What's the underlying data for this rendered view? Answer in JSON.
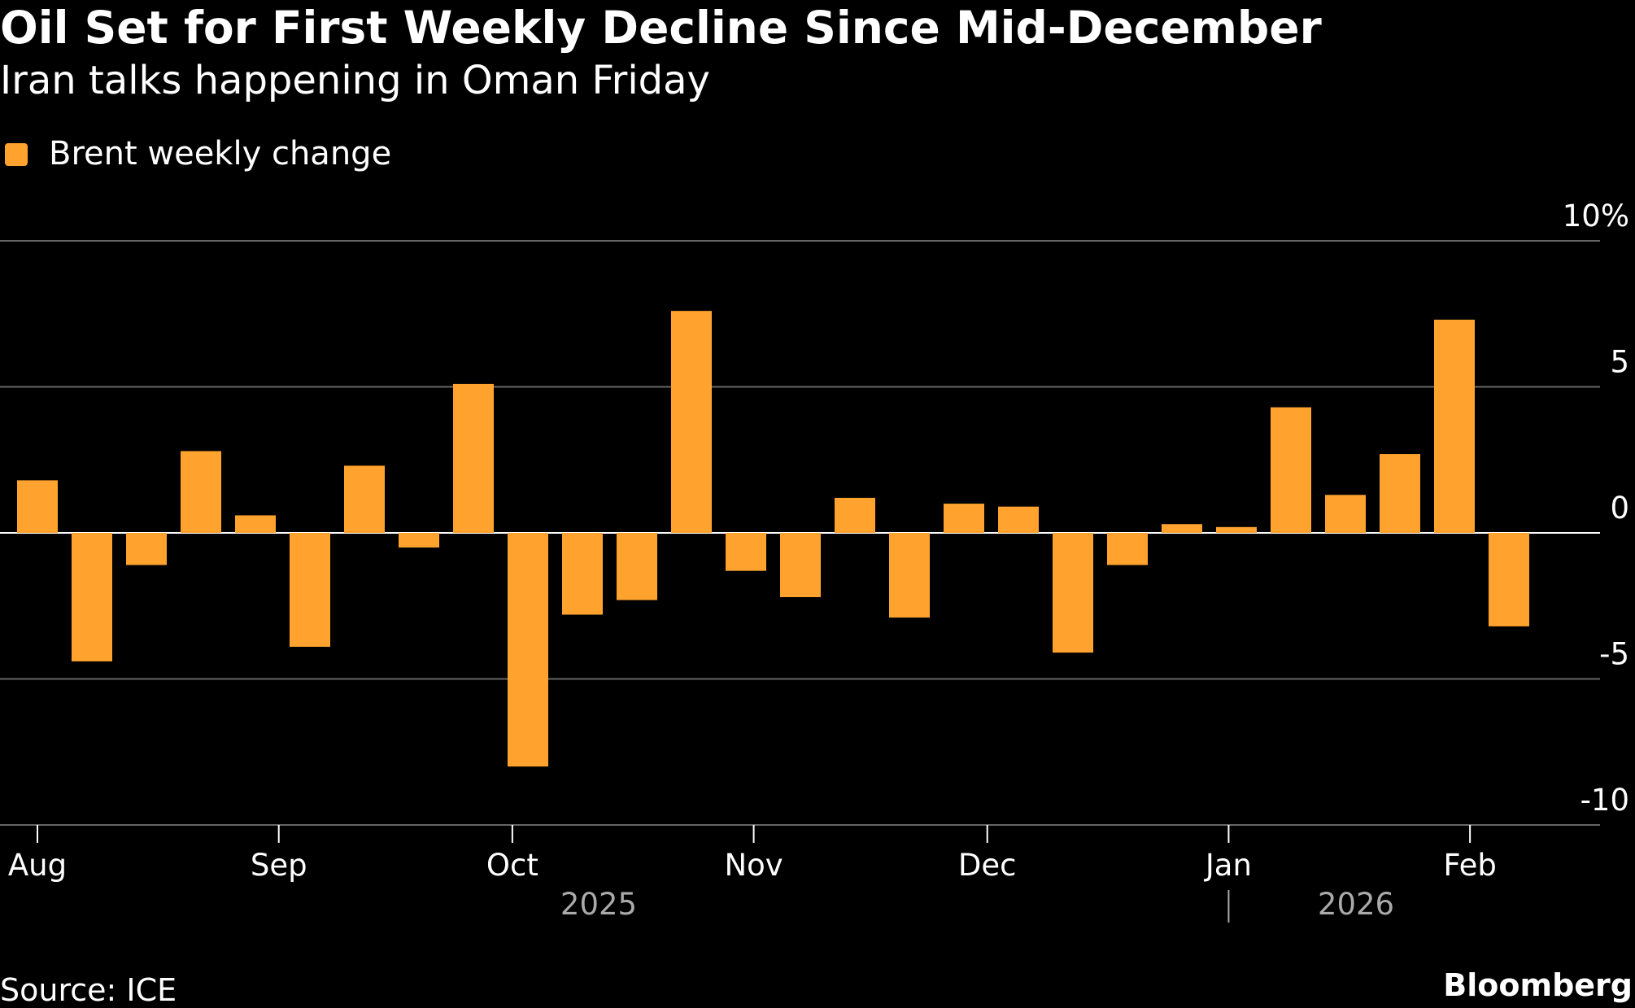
{
  "title": "Oil Set for First Weekly Decline Since Mid-December",
  "subtitle": "Iran talks happening in Oman Friday",
  "source": "Source: ICE",
  "brand": "Bloomberg",
  "chart_data": {
    "type": "bar",
    "legend": [
      {
        "name": "Brent weekly change",
        "color": "#FFA32E"
      }
    ],
    "legend_position": "top-left",
    "ylim": [
      -10,
      10
    ],
    "yticks": [
      {
        "value": 10,
        "label": "10%"
      },
      {
        "value": 5,
        "label": "5"
      },
      {
        "value": 0,
        "label": "0"
      },
      {
        "value": -5,
        "label": "-5"
      },
      {
        "value": -10,
        "label": "-10"
      }
    ],
    "grid": true,
    "xticks": [
      {
        "date": "2025-08-01",
        "label": "Aug"
      },
      {
        "date": "2025-09-01",
        "label": "Sep"
      },
      {
        "date": "2025-10-01",
        "label": "Oct"
      },
      {
        "date": "2025-11-01",
        "label": "Nov"
      },
      {
        "date": "2025-12-01",
        "label": "Dec"
      },
      {
        "date": "2026-01-01",
        "label": "Jan"
      },
      {
        "date": "2026-02-01",
        "label": "Feb"
      }
    ],
    "years": [
      "2025",
      "2026"
    ],
    "series": [
      {
        "name": "Brent weekly change",
        "color": "#FFA32E",
        "x": [
          "2025-08-01",
          "2025-08-08",
          "2025-08-15",
          "2025-08-22",
          "2025-08-29",
          "2025-09-05",
          "2025-09-12",
          "2025-09-19",
          "2025-09-26",
          "2025-10-03",
          "2025-10-10",
          "2025-10-17",
          "2025-10-24",
          "2025-10-31",
          "2025-11-07",
          "2025-11-14",
          "2025-11-21",
          "2025-11-28",
          "2025-12-05",
          "2025-12-12",
          "2025-12-19",
          "2025-12-26",
          "2026-01-02",
          "2026-01-09",
          "2026-01-16",
          "2026-01-23",
          "2026-01-30",
          "2026-02-06"
        ],
        "values": [
          1.8,
          -4.4,
          -1.1,
          2.8,
          0.6,
          -3.9,
          2.3,
          -0.5,
          5.1,
          -8.0,
          -2.8,
          -2.3,
          7.6,
          -1.3,
          -2.2,
          1.2,
          -2.9,
          1.0,
          0.9,
          -4.1,
          -1.1,
          0.3,
          0.2,
          4.3,
          1.3,
          2.7,
          7.3,
          -3.2
        ]
      }
    ]
  }
}
